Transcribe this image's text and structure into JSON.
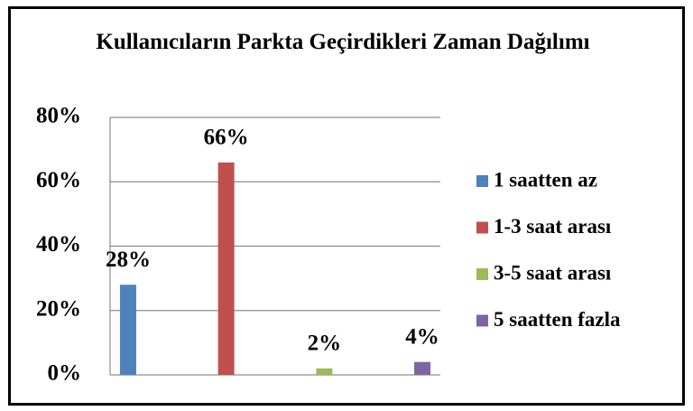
{
  "chart_data": {
    "type": "bar",
    "title": "Kullanıcıların Parkta Geçirdikleri Zaman Dağılımı",
    "categories": [
      null
    ],
    "series": [
      {
        "name": "1 saatten az",
        "color": "#4f81bd",
        "values": [
          28
        ],
        "value_labels": [
          "28%"
        ]
      },
      {
        "name": "1-3 saat arası",
        "color": "#c0504d",
        "values": [
          66
        ],
        "value_labels": [
          "66%"
        ]
      },
      {
        "name": "3-5 saat arası",
        "color": "#9bbb59",
        "values": [
          2
        ],
        "value_labels": [
          "2%"
        ]
      },
      {
        "name": "5 saatten fazla",
        "color": "#8064a2",
        "values": [
          4
        ],
        "value_labels": [
          "4%"
        ]
      }
    ],
    "ylim": [
      0,
      80
    ],
    "yticks": [
      {
        "value": 0,
        "label": "0%"
      },
      {
        "value": 20,
        "label": "20%"
      },
      {
        "value": 40,
        "label": "40%"
      },
      {
        "value": 60,
        "label": "60%"
      },
      {
        "value": 80,
        "label": "80%"
      }
    ],
    "grid": true,
    "legend": "right"
  }
}
